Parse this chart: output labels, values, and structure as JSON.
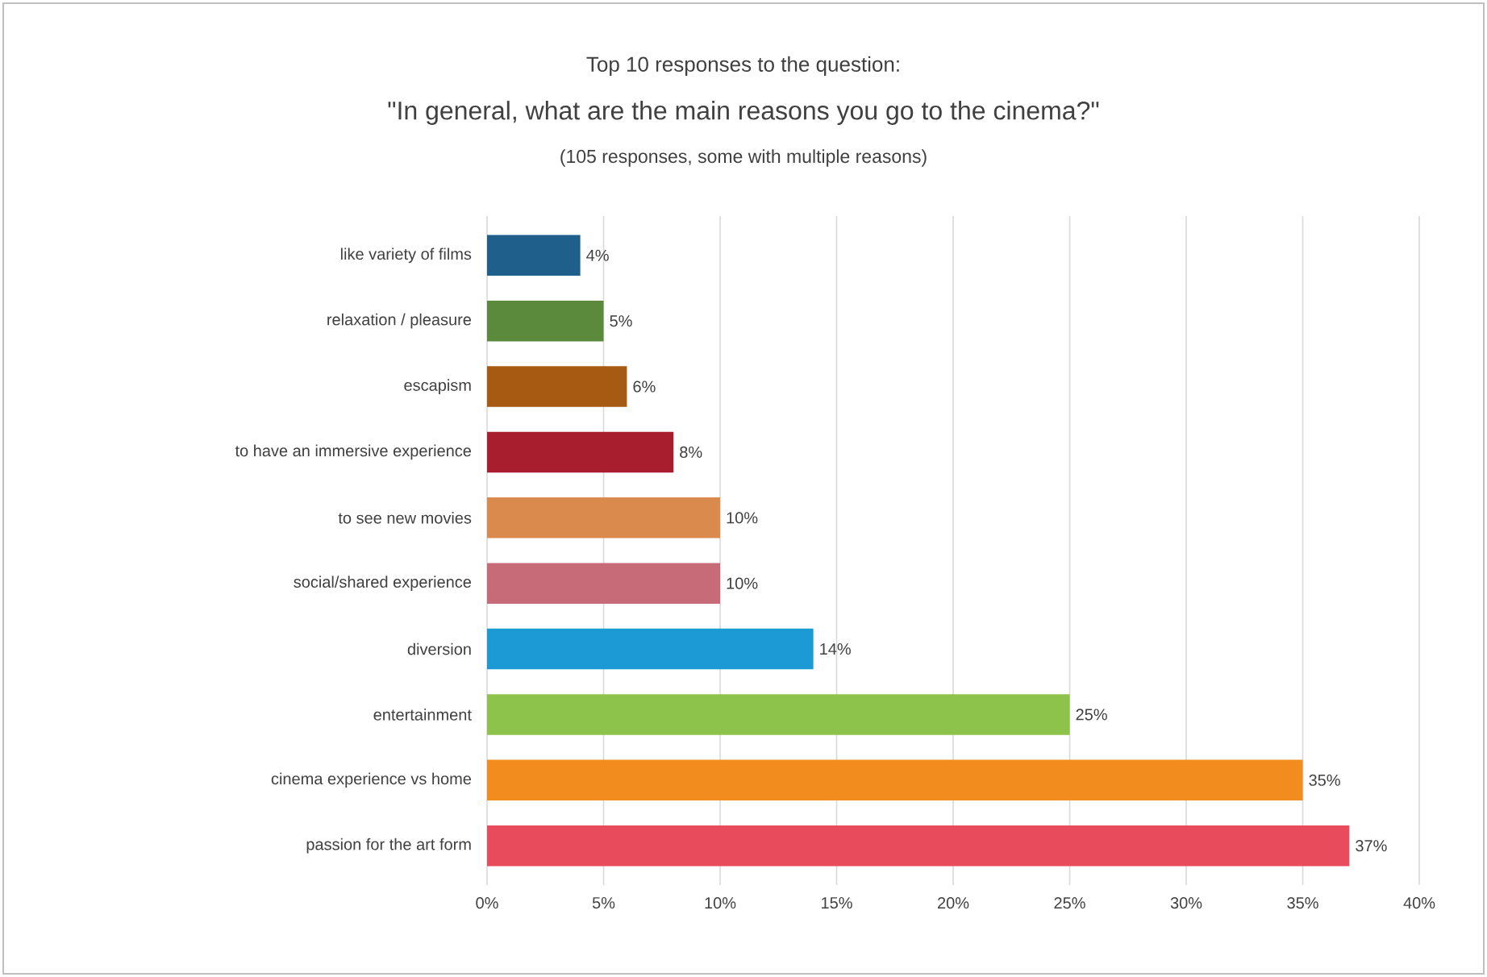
{
  "chart_data": {
    "type": "bar",
    "orientation": "horizontal",
    "title": "Top 10 responses to the question:",
    "subtitle": "\"In general, what are the main reasons you go to the cinema?\"",
    "annotations": [
      "(105 responses, some with multiple reasons)"
    ],
    "categories": [
      "like variety of films",
      "relaxation / pleasure",
      "escapism",
      "to have an immersive experience",
      "to see new movies",
      "social/shared experience",
      "diversion",
      "entertainment",
      "cinema experience vs home",
      "passion for the art form"
    ],
    "values": [
      4,
      5,
      6,
      8,
      10,
      10,
      14,
      25,
      35,
      37
    ],
    "value_labels": [
      "4%",
      "5%",
      "6%",
      "8%",
      "10%",
      "10%",
      "14%",
      "25%",
      "35%",
      "37%"
    ],
    "colors": [
      "#1f5f8b",
      "#5b8a3c",
      "#a65a12",
      "#a81e2e",
      "#d98a4c",
      "#c86b78",
      "#1b9ad6",
      "#8dc34b",
      "#f28c1e",
      "#e84b5c"
    ],
    "xlim": [
      0,
      40
    ],
    "xticks": [
      {
        "value": 0,
        "label": "0%"
      },
      {
        "value": 5,
        "label": "5%"
      },
      {
        "value": 10,
        "label": "10%"
      },
      {
        "value": 15,
        "label": "15%"
      },
      {
        "value": 20,
        "label": "20%"
      },
      {
        "value": 25,
        "label": "25%"
      },
      {
        "value": 30,
        "label": "30%"
      },
      {
        "value": 35,
        "label": "35%"
      },
      {
        "value": 40,
        "label": "40%"
      }
    ],
    "grid": "x"
  }
}
